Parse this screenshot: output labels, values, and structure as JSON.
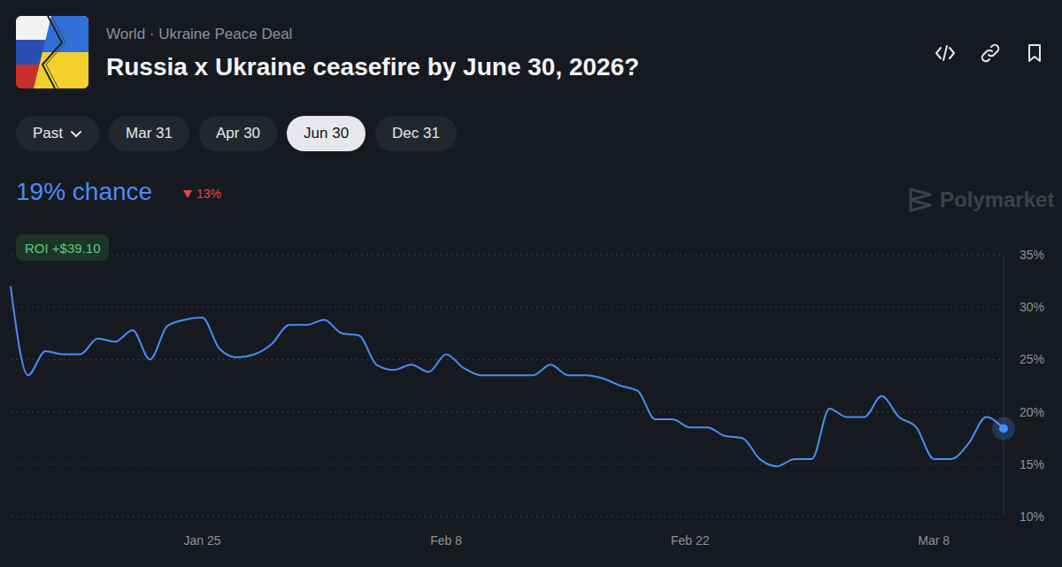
{
  "page": {
    "breadcrumb": "World · Ukraine Peace Deal",
    "title": "Russia x Ukraine ceasefire by June 30, 2026?",
    "tabs": [
      "Past",
      "Mar 31",
      "Apr 30",
      "Jun 30",
      "Dec 31"
    ],
    "selected_tab": "Jun 30",
    "headline": "19% chance",
    "change": "13%",
    "roi": "ROI +$39.10",
    "brand": "Polymarket"
  },
  "chart_data": {
    "type": "line",
    "categories": [
      null,
      null,
      null,
      null,
      null,
      null,
      null,
      null,
      null,
      null,
      null,
      "Jan 25",
      null,
      null,
      null,
      null,
      null,
      null,
      null,
      null,
      null,
      null,
      null,
      null,
      null,
      "Feb 8",
      null,
      null,
      null,
      null,
      null,
      null,
      null,
      null,
      null,
      null,
      null,
      null,
      null,
      "Feb 22",
      null,
      null,
      null,
      null,
      null,
      null,
      null,
      null,
      null,
      null,
      null,
      null,
      null,
      "Mar 8",
      null,
      null,
      null,
      null
    ],
    "values": [
      32,
      23.5,
      25.8,
      25.5,
      25.5,
      27,
      26.7,
      27.8,
      25,
      28.2,
      28.8,
      29,
      26,
      25.2,
      25.5,
      26.5,
      28.3,
      28.3,
      28.8,
      27.5,
      27.3,
      24.5,
      24,
      24.5,
      23.8,
      25.5,
      24.2,
      23.5,
      23.5,
      23.5,
      23.5,
      24.5,
      23.5,
      23.5,
      23.2,
      22.5,
      22,
      19.3,
      19.3,
      18.5,
      18.5,
      17.7,
      17.5,
      15.5,
      14.8,
      15.5,
      15.5,
      20.3,
      19.5,
      19.5,
      21.5,
      19.5,
      18.5,
      15.5,
      15.5,
      17,
      19.5,
      18.4
    ],
    "color": "#4a8cf7",
    "ylim": [
      10,
      35
    ],
    "yticks": [
      {
        "value": 10,
        "label": "10%"
      },
      {
        "value": 15,
        "label": "15%"
      },
      {
        "value": 20,
        "label": "20%"
      },
      {
        "value": 25,
        "label": "25%"
      },
      {
        "value": 30,
        "label": "30%"
      },
      {
        "value": 35,
        "label": "35%"
      }
    ],
    "grid": true
  }
}
